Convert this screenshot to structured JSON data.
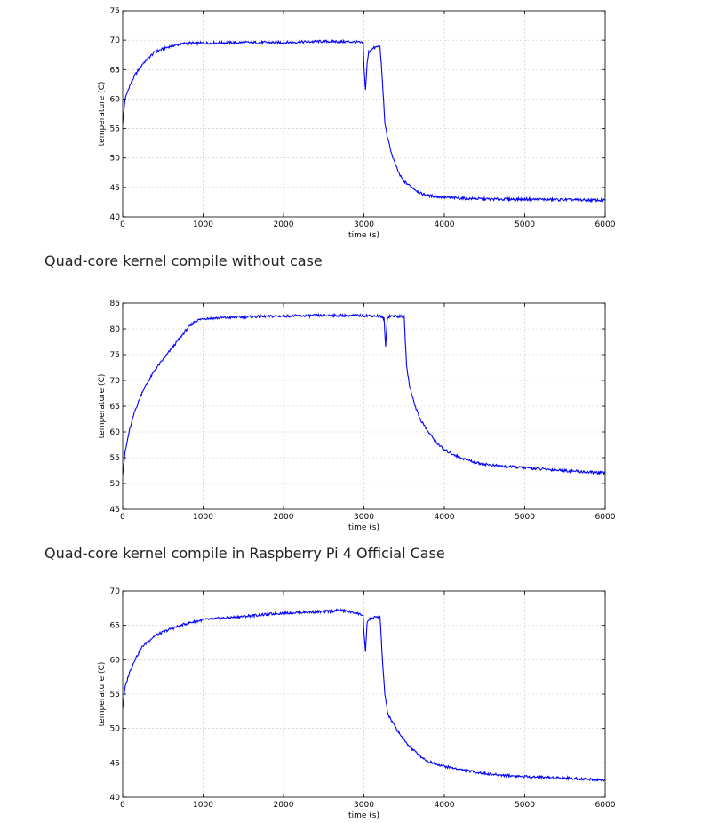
{
  "captions": [
    "Quad-core kernel compile without case",
    "Quad-core kernel compile in Raspberry Pi 4 Official Case"
  ],
  "chart_data": [
    {
      "type": "line",
      "title": "",
      "xlabel": "time (s)",
      "ylabel": "temperature (C)",
      "xlim": [
        0,
        6000
      ],
      "ylim": [
        40,
        75
      ],
      "xticks": [
        0,
        1000,
        2000,
        3000,
        4000,
        5000,
        6000
      ],
      "yticks": [
        40,
        45,
        50,
        55,
        60,
        65,
        70,
        75
      ],
      "grid": true,
      "line_color": "#0000ff",
      "series": [
        {
          "x": [
            0,
            30,
            80,
            150,
            250,
            400,
            600,
            800,
            1000,
            1500,
            2000,
            2500,
            2900,
            2990,
            3000,
            3020,
            3040,
            3060,
            3100,
            3150,
            3200,
            3230,
            3260,
            3300,
            3350,
            3400,
            3450,
            3500,
            3600,
            3700,
            3800,
            4000,
            4300,
            4600,
            5000,
            5500,
            6000
          ],
          "y": [
            56,
            60,
            62,
            64,
            66,
            68,
            69,
            69.5,
            69.5,
            69.6,
            69.6,
            69.8,
            69.7,
            69.5,
            65.5,
            61.5,
            66,
            68,
            68.5,
            68.8,
            69,
            63,
            56,
            53,
            50.5,
            48.5,
            47,
            46,
            45,
            44,
            43.6,
            43.3,
            43.1,
            43,
            43,
            42.9,
            42.8
          ]
        }
      ]
    },
    {
      "type": "line",
      "title": "",
      "xlabel": "time (s)",
      "ylabel": "temperature (C)",
      "xlim": [
        0,
        6000
      ],
      "ylim": [
        45,
        85
      ],
      "xticks": [
        0,
        1000,
        2000,
        3000,
        4000,
        5000,
        6000
      ],
      "yticks": [
        45,
        50,
        55,
        60,
        65,
        70,
        75,
        80,
        85
      ],
      "grid": true,
      "line_color": "#0000ff",
      "series": [
        {
          "x": [
            0,
            30,
            80,
            150,
            250,
            400,
            600,
            800,
            900,
            1000,
            1500,
            2000,
            2500,
            3000,
            3200,
            3250,
            3270,
            3290,
            3320,
            3400,
            3500,
            3530,
            3560,
            3600,
            3650,
            3700,
            3800,
            3900,
            4000,
            4200,
            4400,
            4600,
            5000,
            5500,
            6000
          ],
          "y": [
            52,
            56,
            60,
            64,
            68,
            72,
            76,
            80,
            81.5,
            82,
            82.3,
            82.5,
            82.6,
            82.6,
            82.5,
            82,
            76.5,
            82,
            82.5,
            82.5,
            82.3,
            73,
            69.5,
            67,
            64.5,
            62.5,
            60,
            58,
            56.5,
            55,
            54,
            53.5,
            53,
            52.5,
            52
          ]
        }
      ]
    },
    {
      "type": "line",
      "title": "",
      "xlabel": "time (s)",
      "ylabel": "temperature (C)",
      "xlim": [
        0,
        6000
      ],
      "ylim": [
        40,
        70
      ],
      "xticks": [
        0,
        1000,
        2000,
        3000,
        4000,
        5000,
        6000
      ],
      "yticks": [
        40,
        45,
        50,
        55,
        60,
        65,
        70
      ],
      "grid": true,
      "line_color": "#0000ff",
      "series": [
        {
          "x": [
            0,
            30,
            80,
            150,
            250,
            400,
            600,
            800,
            1000,
            1500,
            2000,
            2500,
            2700,
            2900,
            2990,
            3000,
            3020,
            3040,
            3080,
            3150,
            3200,
            3230,
            3260,
            3300,
            3400,
            3500,
            3600,
            3700,
            3800,
            4000,
            4300,
            4600,
            5000,
            5500,
            6000
          ],
          "y": [
            53,
            56,
            58,
            60,
            62,
            63.5,
            64.5,
            65.3,
            65.8,
            66.3,
            66.8,
            67,
            67.2,
            66.8,
            66.5,
            64,
            61,
            65.5,
            66,
            66.2,
            66.3,
            60,
            55,
            52,
            50,
            48.3,
            47,
            46,
            45.2,
            44.5,
            43.8,
            43.3,
            43,
            42.8,
            42.5
          ]
        }
      ]
    }
  ]
}
